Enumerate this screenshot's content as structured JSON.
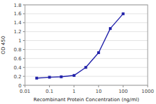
{
  "chart_data": {
    "type": "line",
    "x": [
      0.03,
      0.1,
      0.3,
      1,
      3,
      10,
      30,
      100
    ],
    "values": [
      0.16,
      0.18,
      0.19,
      0.22,
      0.4,
      0.73,
      1.27,
      1.6
    ],
    "color": "#2222aa",
    "marker": "square",
    "xlabel": "Recombinant Protein Concentration (ng/ml)",
    "ylabel": "OD 450",
    "log": "x",
    "xlim": [
      0.01,
      1000
    ],
    "ylim": [
      0,
      1.8
    ],
    "xticks": [
      0.01,
      0.1,
      1,
      10,
      100,
      1000
    ],
    "yticks": [
      0,
      0.2,
      0.4,
      0.6,
      0.8,
      1,
      1.2,
      1.4,
      1.6,
      1.8
    ],
    "grid": true
  }
}
